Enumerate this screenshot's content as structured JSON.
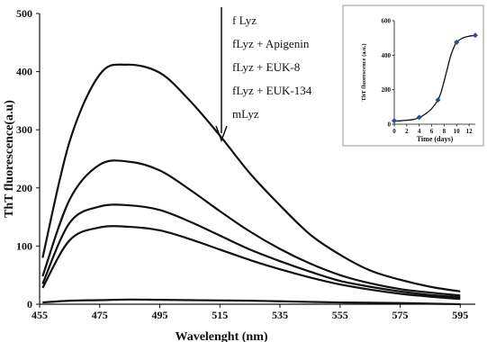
{
  "chart_data": [
    {
      "type": "line",
      "xlabel": "Wavelenght (nm)",
      "ylabel": "ThT fluorescence(a.u)",
      "xlim": [
        455,
        600
      ],
      "ylim": [
        0,
        500
      ],
      "x_ticks": [
        "455",
        "475",
        "495",
        "515",
        "535",
        "555",
        "575",
        "595"
      ],
      "y_ticks": [
        "0",
        "100",
        "200",
        "300",
        "400",
        "500"
      ],
      "grid": false,
      "legend_labels": [
        "f Lyz",
        "fLyz + Apigenin",
        "fLyz + EUK-8",
        "fLyz + EUK-134",
        "mLyz"
      ],
      "series": [
        {
          "name": "f Lyz",
          "x": [
            456,
            465,
            475,
            484,
            495,
            505,
            515,
            525,
            535,
            545,
            555,
            565,
            575,
            585,
            595
          ],
          "y": [
            80,
            280,
            395,
            412,
            398,
            350,
            290,
            225,
            170,
            120,
            85,
            58,
            42,
            30,
            22
          ]
        },
        {
          "name": "fLyz + Apigenin",
          "x": [
            456,
            465,
            475,
            485,
            495,
            505,
            515,
            525,
            535,
            545,
            555,
            565,
            575,
            585,
            595
          ],
          "y": [
            48,
            180,
            240,
            245,
            230,
            197,
            160,
            125,
            95,
            70,
            50,
            36,
            26,
            20,
            15
          ]
        },
        {
          "name": "fLyz + EUK-8",
          "x": [
            456,
            465,
            475,
            485,
            495,
            505,
            515,
            525,
            535,
            545,
            555,
            565,
            575,
            585,
            595
          ],
          "y": [
            35,
            140,
            168,
            170,
            162,
            142,
            118,
            94,
            74,
            56,
            40,
            30,
            22,
            16,
            12
          ]
        },
        {
          "name": "fLyz + EUK-134",
          "x": [
            456,
            465,
            475,
            485,
            495,
            505,
            515,
            525,
            535,
            545,
            555,
            565,
            575,
            585,
            595
          ],
          "y": [
            28,
            110,
            132,
            133,
            127,
            112,
            94,
            76,
            60,
            46,
            34,
            25,
            18,
            13,
            9
          ]
        },
        {
          "name": "mLyz",
          "x": [
            456,
            465,
            475,
            485,
            495,
            505,
            515,
            525,
            535,
            545,
            555,
            565,
            575,
            585,
            595
          ],
          "y": [
            3,
            6,
            7,
            8,
            7.5,
            7,
            6.5,
            6,
            5,
            4,
            3,
            2.5,
            2,
            1,
            0
          ]
        }
      ]
    },
    {
      "type": "scatter",
      "xlabel": "Time (days)",
      "ylabel": "ThT fluorescence (a.u.)",
      "xlim": [
        0,
        13
      ],
      "ylim": [
        0,
        600
      ],
      "x_ticks": [
        "0",
        "2",
        "4",
        "6",
        "8",
        "10",
        "12"
      ],
      "y_ticks": [
        "0",
        "200",
        "400",
        "600"
      ],
      "series": [
        {
          "x": [
            0,
            4,
            7,
            10,
            13
          ],
          "y": [
            20,
            40,
            140,
            475,
            515
          ]
        }
      ],
      "fit": {
        "x": [
          0,
          1,
          2,
          3,
          4,
          5,
          6,
          7,
          7.5,
          8,
          8.5,
          9,
          9.5,
          10,
          11,
          12,
          13
        ],
        "y": [
          18,
          20,
          23,
          27,
          38,
          60,
          90,
          140,
          185,
          250,
          320,
          390,
          440,
          475,
          500,
          510,
          515
        ]
      }
    }
  ]
}
